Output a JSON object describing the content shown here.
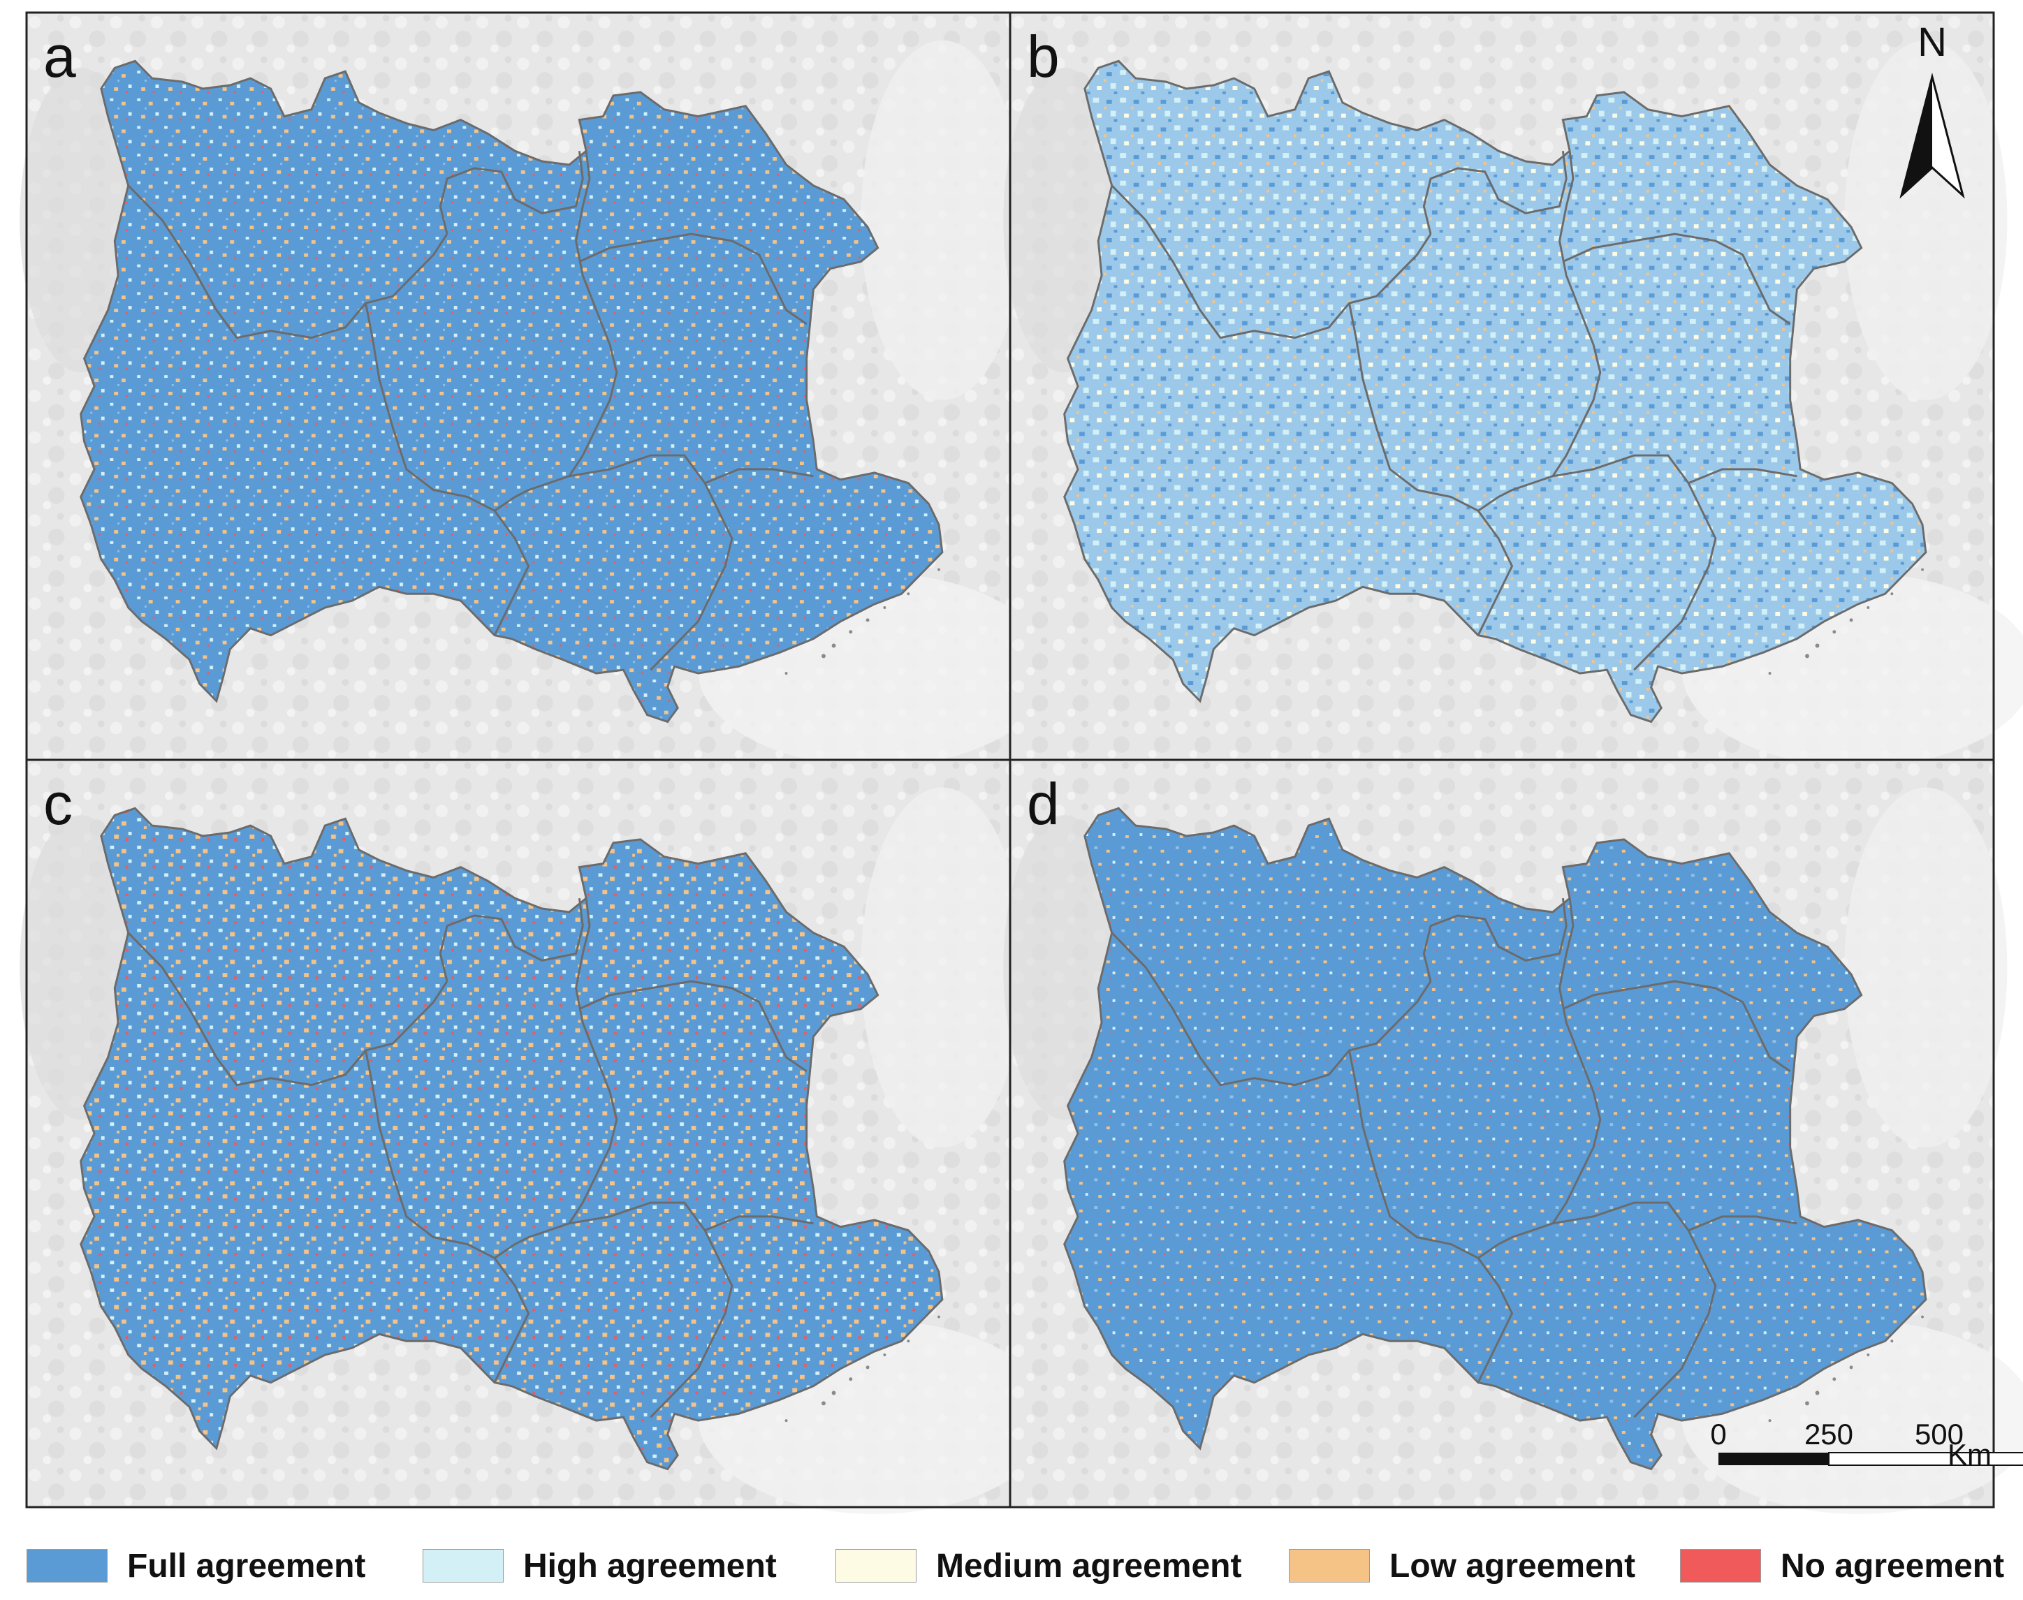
{
  "panels": [
    {
      "letter": "a",
      "pattern": "agree-a"
    },
    {
      "letter": "b",
      "pattern": "agree-b"
    },
    {
      "letter": "c",
      "pattern": "agree-c"
    },
    {
      "letter": "d",
      "pattern": "agree-d"
    }
  ],
  "north_arrow": {
    "label": "N"
  },
  "scale_bar": {
    "ticks": [
      "0",
      "250",
      "500"
    ],
    "unit": "Km"
  },
  "legend": [
    {
      "label": "Full agreement",
      "color": "#5b9bd5"
    },
    {
      "label": "High agreement",
      "color": "#d2f0f5"
    },
    {
      "label": "Medium agreement",
      "color": "#fdfbe3"
    },
    {
      "label": "Low agreement",
      "color": "#f6c386"
    },
    {
      "label": "No agreement",
      "color": "#f05a5a"
    }
  ],
  "colors": {
    "basemap": "#e6e6e6",
    "boundary": "#6b6b6b",
    "frame": "#222222"
  }
}
